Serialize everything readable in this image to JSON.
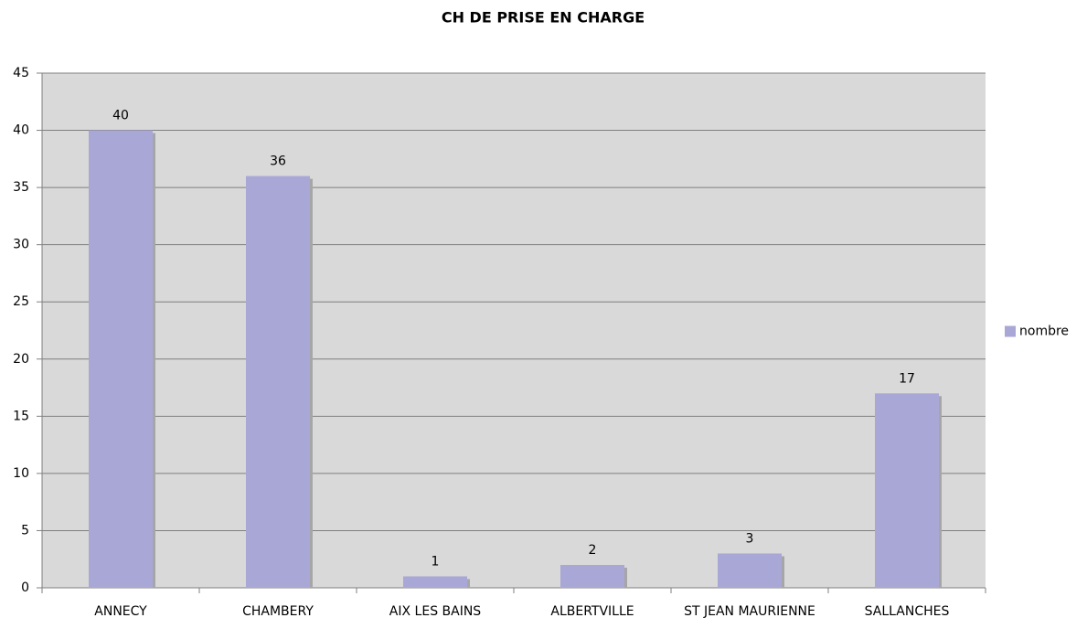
{
  "chart_data": {
    "type": "bar",
    "title": "CH DE PRISE EN CHARGE",
    "categories": [
      "ANNECY",
      "CHAMBERY",
      "AIX LES BAINS",
      "ALBERTVILLE",
      "ST JEAN MAURIENNE",
      "SALLANCHES"
    ],
    "series": [
      {
        "name": "nombre",
        "color": "#a9a7d6",
        "values": [
          40,
          36,
          1,
          2,
          3,
          17
        ]
      }
    ],
    "ylim": [
      0,
      45
    ],
    "yticks": [
      0,
      5,
      10,
      15,
      20,
      25,
      30,
      35,
      40,
      45
    ],
    "grid": true,
    "legend": "right"
  }
}
